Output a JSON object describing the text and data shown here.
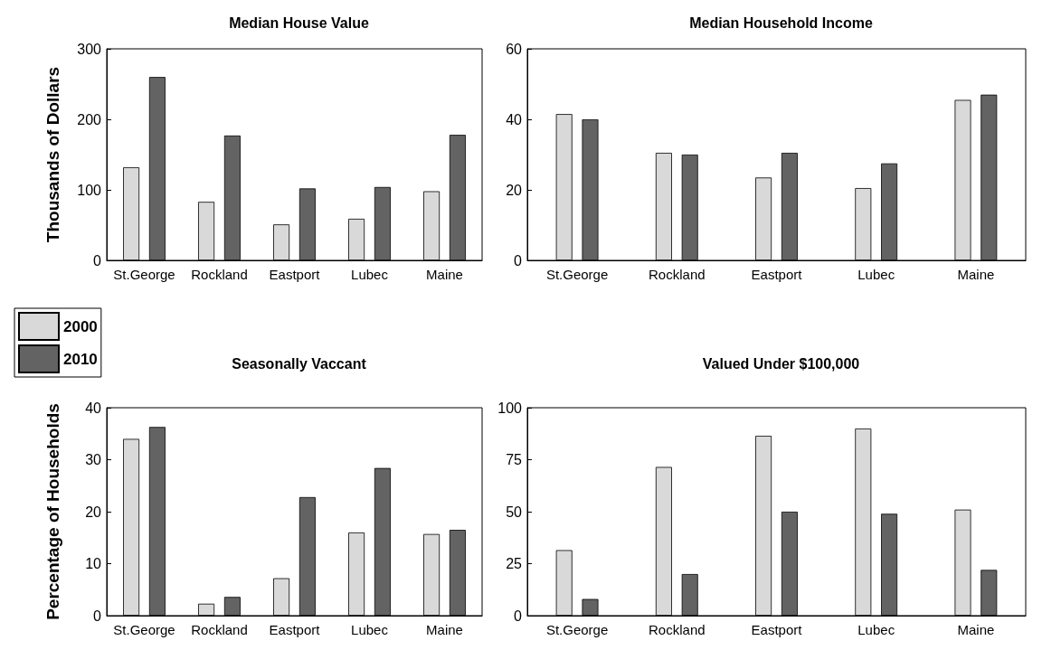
{
  "chart_data": [
    {
      "type": "bar",
      "title": "Median House Value",
      "ylabel": "Thousands of Dollars",
      "categories": [
        "St.George",
        "Rockland",
        "Eastport",
        "Lubec",
        "Maine"
      ],
      "ylim": [
        0,
        300
      ],
      "yticks": [
        0,
        100,
        200,
        300
      ],
      "grid": false,
      "legend": "bottom left",
      "series": [
        {
          "name": "2000",
          "color": "#d9d9d9",
          "values": [
            132,
            83,
            51,
            59,
            98
          ]
        },
        {
          "name": "2010",
          "color": "#636363",
          "values": [
            260,
            177,
            102,
            104,
            178
          ]
        }
      ]
    },
    {
      "type": "bar",
      "title": "Median Household Income",
      "categories": [
        "St.George",
        "Rockland",
        "Eastport",
        "Lubec",
        "Maine"
      ],
      "ylim": [
        0,
        60
      ],
      "yticks": [
        0,
        20,
        40,
        60
      ],
      "grid": false,
      "series": [
        {
          "color": "#d9d9d9",
          "values": [
            41.5,
            30.5,
            23.5,
            20.5,
            45.5
          ]
        },
        {
          "color": "#636363",
          "values": [
            40,
            30,
            30.5,
            27.5,
            47
          ]
        }
      ]
    },
    {
      "type": "bar",
      "title": "Seasonally Vaccant",
      "ylabel": "Percentage of Households",
      "categories": [
        "St.George",
        "Rockland",
        "Eastport",
        "Lubec",
        "Maine"
      ],
      "ylim": [
        0,
        40
      ],
      "yticks": [
        0,
        10,
        20,
        30,
        40
      ],
      "grid": false,
      "series": [
        {
          "color": "#d9d9d9",
          "values": [
            34,
            2.3,
            7.2,
            16,
            15.7
          ]
        },
        {
          "color": "#636363",
          "values": [
            36.3,
            3.6,
            22.8,
            28.4,
            16.5
          ]
        }
      ]
    },
    {
      "type": "bar",
      "title": "Valued Under $100,000",
      "categories": [
        "St.George",
        "Rockland",
        "Eastport",
        "Lubec",
        "Maine"
      ],
      "ylim": [
        0,
        100
      ],
      "yticks": [
        0,
        25,
        50,
        75,
        100
      ],
      "grid": false,
      "series": [
        {
          "color": "#d9d9d9",
          "values": [
            31.5,
            71.5,
            86.5,
            90,
            51
          ]
        },
        {
          "color": "#636363",
          "values": [
            8,
            20,
            50,
            49,
            22
          ]
        }
      ]
    }
  ]
}
